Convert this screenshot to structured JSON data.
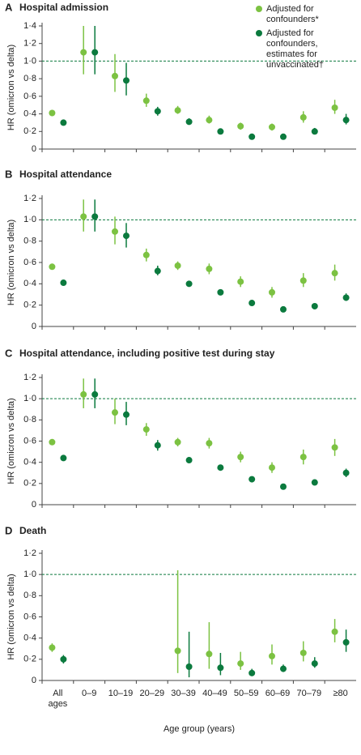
{
  "chart_data": [
    {
      "type": "errorbar",
      "panel_label": "A",
      "title": "Hospital admission",
      "ylabel": "HR (omicron vs delta)",
      "categories": [
        null,
        null,
        null,
        null,
        null,
        null,
        null,
        null,
        null,
        null
      ],
      "ylim": [
        0,
        1.4
      ],
      "yticks": [
        0,
        {
          "value": 0.2,
          "label": "0·2"
        },
        {
          "value": 0.4,
          "label": "0·4"
        },
        {
          "value": 0.6,
          "label": "0·6"
        },
        {
          "value": 0.8,
          "label": "0·8"
        },
        {
          "value": 1.0,
          "label": "1·0"
        },
        {
          "value": 1.2,
          "label": "1·2"
        },
        {
          "value": 1.4,
          "label": "1·4"
        }
      ],
      "reference_line": 1.0,
      "series": [
        {
          "name": "Adjusted for confounders*",
          "color": "#7cc242",
          "values": [
            0.41,
            1.1,
            0.83,
            0.55,
            0.44,
            0.33,
            0.26,
            0.25,
            0.36,
            0.47
          ],
          "lower": [
            0.39,
            0.85,
            0.65,
            0.48,
            0.4,
            0.29,
            0.22,
            0.21,
            0.3,
            0.4
          ],
          "upper": [
            0.43,
            1.4,
            1.08,
            0.63,
            0.49,
            0.38,
            0.3,
            0.29,
            0.43,
            0.56
          ]
        },
        {
          "name": "Adjusted for confounders, estimates for unvaccinated†",
          "color": "#0b7a3e",
          "values": [
            0.3,
            1.1,
            0.78,
            0.43,
            0.31,
            0.2,
            0.14,
            0.14,
            0.2,
            0.33
          ],
          "lower": [
            0.29,
            0.85,
            0.61,
            0.38,
            0.28,
            0.18,
            0.12,
            0.12,
            0.17,
            0.28
          ],
          "upper": [
            0.31,
            1.4,
            0.98,
            0.48,
            0.35,
            0.22,
            0.16,
            0.16,
            0.24,
            0.4
          ]
        }
      ]
    },
    {
      "type": "errorbar",
      "panel_label": "B",
      "title": "Hospital attendance",
      "ylabel": "HR (omicron vs delta)",
      "categories": [
        null,
        null,
        null,
        null,
        null,
        null,
        null,
        null,
        null,
        null
      ],
      "ylim": [
        0,
        1.2
      ],
      "yticks": [
        0,
        {
          "value": 0.2,
          "label": "0·2"
        },
        {
          "value": 0.4,
          "label": "0·4"
        },
        {
          "value": 0.6,
          "label": "0·6"
        },
        {
          "value": 0.8,
          "label": "0·8"
        },
        {
          "value": 1.0,
          "label": "1·0"
        },
        {
          "value": 1.2,
          "label": "1·2"
        }
      ],
      "reference_line": 1.0,
      "series": [
        {
          "color": "#7cc242",
          "values": [
            0.56,
            1.03,
            0.89,
            0.67,
            0.57,
            0.54,
            0.42,
            0.32,
            0.43,
            0.5
          ],
          "lower": [
            0.55,
            0.89,
            0.77,
            0.61,
            0.53,
            0.49,
            0.37,
            0.27,
            0.37,
            0.43
          ],
          "upper": [
            0.57,
            1.19,
            1.03,
            0.73,
            0.61,
            0.59,
            0.47,
            0.37,
            0.5,
            0.58
          ]
        },
        {
          "color": "#0b7a3e",
          "values": [
            0.41,
            1.03,
            0.85,
            0.52,
            0.4,
            0.32,
            0.22,
            0.16,
            0.19,
            0.27
          ],
          "lower": [
            0.4,
            0.89,
            0.74,
            0.48,
            0.38,
            0.3,
            0.2,
            0.14,
            0.17,
            0.24
          ],
          "upper": [
            0.42,
            1.19,
            0.97,
            0.57,
            0.42,
            0.34,
            0.24,
            0.18,
            0.21,
            0.31
          ]
        }
      ]
    },
    {
      "type": "errorbar",
      "panel_label": "C",
      "title": "Hospital attendance, including positive test during stay",
      "ylabel": "HR (omicron vs delta)",
      "categories": [
        null,
        null,
        null,
        null,
        null,
        null,
        null,
        null,
        null,
        null
      ],
      "ylim": [
        0,
        1.2
      ],
      "yticks": [
        0,
        {
          "value": 0.2,
          "label": "0·2"
        },
        {
          "value": 0.4,
          "label": "0·4"
        },
        {
          "value": 0.6,
          "label": "0·6"
        },
        {
          "value": 0.8,
          "label": "0·8"
        },
        {
          "value": 1.0,
          "label": "1·0"
        },
        {
          "value": 1.2,
          "label": "1·2"
        }
      ],
      "reference_line": 1.0,
      "series": [
        {
          "color": "#7cc242",
          "values": [
            0.59,
            1.04,
            0.87,
            0.71,
            0.59,
            0.58,
            0.45,
            0.35,
            0.45,
            0.54
          ],
          "lower": [
            0.58,
            0.91,
            0.76,
            0.65,
            0.55,
            0.53,
            0.4,
            0.3,
            0.38,
            0.46
          ],
          "upper": [
            0.6,
            1.19,
            1.0,
            0.77,
            0.63,
            0.63,
            0.5,
            0.4,
            0.52,
            0.62
          ]
        },
        {
          "color": "#0b7a3e",
          "values": [
            0.44,
            1.04,
            0.85,
            0.56,
            0.42,
            0.35,
            0.24,
            0.17,
            0.21,
            0.3
          ],
          "lower": [
            0.43,
            0.91,
            0.75,
            0.51,
            0.4,
            0.33,
            0.22,
            0.15,
            0.19,
            0.26
          ],
          "upper": [
            0.45,
            1.19,
            0.97,
            0.61,
            0.44,
            0.37,
            0.26,
            0.19,
            0.23,
            0.34
          ]
        }
      ]
    },
    {
      "type": "errorbar",
      "panel_label": "D",
      "title": "Death",
      "ylabel": "HR (omicron vs delta)",
      "xlabel": "Age group (years)",
      "categories": [
        "All ages",
        "0–9",
        "10–19",
        "20–29",
        "30–39",
        "40–49",
        "50–59",
        "60–69",
        "70–79",
        "≥80"
      ],
      "ylim": [
        0,
        1.2
      ],
      "yticks": [
        0,
        {
          "value": 0.2,
          "label": "0·2"
        },
        {
          "value": 0.4,
          "label": "0·4"
        },
        {
          "value": 0.6,
          "label": "0·6"
        },
        {
          "value": 0.8,
          "label": "0·8"
        },
        {
          "value": 1.0,
          "label": "1·0"
        },
        {
          "value": 1.2,
          "label": "1·2"
        }
      ],
      "reference_line": 1.0,
      "series": [
        {
          "color": "#7cc242",
          "values": [
            0.31,
            null,
            null,
            null,
            0.28,
            0.25,
            0.16,
            0.23,
            0.26,
            0.46
          ],
          "lower": [
            0.27,
            null,
            null,
            null,
            0.07,
            0.11,
            0.1,
            0.15,
            0.18,
            0.36
          ],
          "upper": [
            0.35,
            null,
            null,
            null,
            1.04,
            0.55,
            0.27,
            0.34,
            0.37,
            0.58
          ]
        },
        {
          "color": "#0b7a3e",
          "values": [
            0.2,
            null,
            null,
            null,
            0.13,
            0.12,
            0.07,
            0.11,
            0.16,
            0.36
          ],
          "lower": [
            0.16,
            null,
            null,
            null,
            0.03,
            0.05,
            0.05,
            0.08,
            0.12,
            0.27
          ],
          "upper": [
            0.24,
            null,
            null,
            null,
            0.46,
            0.26,
            0.11,
            0.15,
            0.22,
            0.48
          ]
        }
      ]
    }
  ]
}
